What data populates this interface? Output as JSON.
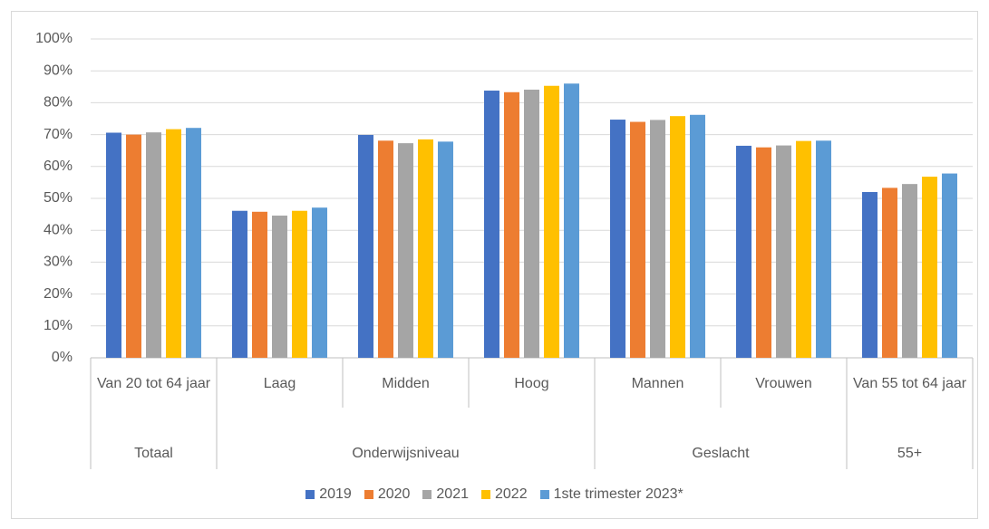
{
  "chart_data": {
    "type": "bar",
    "groups": [
      {
        "name": "Totaal",
        "categories": [
          "Van 20 tot 64 jaar"
        ]
      },
      {
        "name": "Onderwijsniveau",
        "categories": [
          "Laag",
          "Midden",
          "Hoog"
        ]
      },
      {
        "name": "Geslacht",
        "categories": [
          "Mannen",
          "Vrouwen"
        ]
      },
      {
        "name": "55+",
        "categories": [
          "Van 55 tot 64 jaar"
        ]
      }
    ],
    "series": [
      {
        "name": "2019",
        "color": "#4472c4",
        "values": [
          70.6,
          46.1,
          69.9,
          83.8,
          74.7,
          66.5,
          52.0
        ]
      },
      {
        "name": "2020",
        "color": "#ed7d31",
        "values": [
          70.0,
          45.8,
          68.1,
          83.3,
          74.0,
          66.0,
          53.3
        ]
      },
      {
        "name": "2021",
        "color": "#a5a5a5",
        "values": [
          70.7,
          44.6,
          67.3,
          84.1,
          74.6,
          66.6,
          54.5
        ]
      },
      {
        "name": "2022",
        "color": "#ffc000",
        "values": [
          71.7,
          46.1,
          68.5,
          85.3,
          75.8,
          68.0,
          56.8
        ]
      },
      {
        "name": "1ste trimester 2023*",
        "color": "#5b9bd5",
        "values": [
          72.1,
          47.1,
          67.8,
          86.0,
          76.2,
          68.1,
          57.8
        ]
      }
    ],
    "ylim": [
      0,
      100
    ],
    "yticks": [
      {
        "value": 0,
        "label": "0%"
      },
      {
        "value": 10,
        "label": "10%"
      },
      {
        "value": 20,
        "label": "20%"
      },
      {
        "value": 30,
        "label": "30%"
      },
      {
        "value": 40,
        "label": "40%"
      },
      {
        "value": 50,
        "label": "50%"
      },
      {
        "value": 60,
        "label": "60%"
      },
      {
        "value": 70,
        "label": "70%"
      },
      {
        "value": 80,
        "label": "80%"
      },
      {
        "value": 90,
        "label": "90%"
      },
      {
        "value": 100,
        "label": "100%"
      }
    ],
    "grid": true,
    "legend": "bottom"
  }
}
